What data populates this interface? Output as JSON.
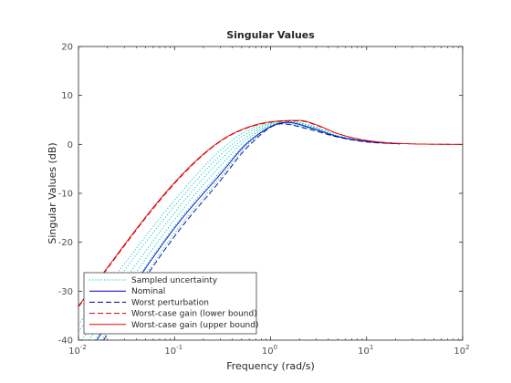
{
  "chart_data": {
    "type": "line",
    "title": "Singular Values",
    "xlabel": "Frequency (rad/s)",
    "ylabel": "Singular Values (dB)",
    "xscale": "log",
    "xlim": [
      0.01,
      100
    ],
    "ylim": [
      -40,
      20
    ],
    "xticks": [
      {
        "value": 0.01,
        "base": "10",
        "exp": "-2"
      },
      {
        "value": 0.1,
        "base": "10",
        "exp": "-1"
      },
      {
        "value": 1,
        "base": "10",
        "exp": "0"
      },
      {
        "value": 10,
        "base": "10",
        "exp": "1"
      },
      {
        "value": 100,
        "base": "10",
        "exp": "2"
      }
    ],
    "yticks": [
      "-40",
      "-30",
      "-20",
      "-10",
      "0",
      "10",
      "20"
    ],
    "grid": false,
    "legend_position": "bottom-left",
    "series": [
      {
        "name": "Sampled uncertainty",
        "color": "#00bfbf",
        "dash": "dotted",
        "curves": [
          [
            [
              0.0174,
              -40
            ],
            [
              0.1,
              -18.2
            ],
            [
              0.3,
              -6.8
            ],
            [
              0.6,
              0.2
            ],
            [
              1.3,
              4.3
            ],
            [
              2.5,
              3.3
            ],
            [
              5,
              1.6
            ],
            [
              10,
              0.6
            ],
            [
              22,
              0.1
            ]
          ],
          [
            [
              0.0149,
              -40
            ],
            [
              0.1,
              -16.7
            ],
            [
              0.3,
              -5.6
            ],
            [
              0.6,
              0.8
            ],
            [
              1.4,
              4.4
            ],
            [
              2.5,
              3.4
            ],
            [
              5,
              1.6
            ],
            [
              10,
              0.6
            ],
            [
              22,
              0.1
            ]
          ],
          [
            [
              0.0128,
              -40
            ],
            [
              0.1,
              -15.4
            ],
            [
              0.3,
              -4.4
            ],
            [
              0.6,
              1.4
            ],
            [
              1.5,
              4.5
            ],
            [
              2.6,
              3.5
            ],
            [
              5,
              1.7
            ],
            [
              10,
              0.6
            ],
            [
              22,
              0.1
            ]
          ],
          [
            [
              0.0108,
              -40
            ],
            [
              0.1,
              -14.0
            ],
            [
              0.3,
              -3.2
            ],
            [
              0.6,
              1.9
            ],
            [
              1.5,
              4.5
            ],
            [
              2.6,
              3.6
            ],
            [
              5,
              1.7
            ],
            [
              10,
              0.6
            ],
            [
              22,
              0.1
            ]
          ],
          [
            [
              0.01,
              -38.2
            ],
            [
              0.1,
              -12.6
            ],
            [
              0.3,
              -2.2
            ],
            [
              0.6,
              2.5
            ],
            [
              1.6,
              4.6
            ],
            [
              2.7,
              3.7
            ],
            [
              5,
              1.8
            ],
            [
              10,
              0.6
            ],
            [
              22,
              0.1
            ]
          ],
          [
            [
              0.01,
              -36.8
            ],
            [
              0.1,
              -11.4
            ],
            [
              0.3,
              -1.2
            ],
            [
              0.6,
              3.0
            ],
            [
              1.7,
              4.6
            ],
            [
              2.7,
              3.8
            ],
            [
              5,
              1.8
            ],
            [
              10,
              0.6
            ],
            [
              22,
              0.1
            ]
          ]
        ]
      },
      {
        "name": "Nominal",
        "color": "#0000cd",
        "dash": "solid",
        "curves": [
          [
            [
              0.0155,
              -40
            ],
            [
              0.1,
              -17.1
            ],
            [
              0.3,
              -6.1
            ],
            [
              0.6,
              0.6
            ],
            [
              1.5,
              4.5
            ],
            [
              2.6,
              3.4
            ],
            [
              5,
              1.6
            ],
            [
              10,
              0.6
            ],
            [
              22,
              0.1
            ]
          ]
        ]
      },
      {
        "name": "Worst perturbation",
        "color": "#00008b",
        "dash": "dashed",
        "curves": [
          [
            [
              0.0182,
              -40
            ],
            [
              0.1,
              -18.8
            ],
            [
              0.3,
              -7.4
            ],
            [
              0.6,
              -0.2
            ],
            [
              1.3,
              4.2
            ],
            [
              2.4,
              3.2
            ],
            [
              5,
              1.5
            ],
            [
              10,
              0.5
            ],
            [
              22,
              0.1
            ]
          ]
        ]
      },
      {
        "name": "Worst-case gain (lower bound)",
        "color": "#cc0000",
        "dash": "dashed",
        "curves": [
          [
            [
              0.01,
              -33.2
            ],
            [
              0.1,
              -8.0
            ],
            [
              0.3,
              0.6
            ],
            [
              0.7,
              3.9
            ],
            [
              2.0,
              4.8
            ],
            [
              3,
              3.9
            ],
            [
              5,
              2.2
            ],
            [
              10,
              0.8
            ],
            [
              30,
              0.1
            ],
            [
              100,
              0
            ]
          ]
        ]
      },
      {
        "name": "Worst-case gain (upper bound)",
        "color": "#e00000",
        "dash": "solid",
        "curves": [
          [
            [
              0.01,
              -33.0
            ],
            [
              0.1,
              -7.8
            ],
            [
              0.3,
              0.7
            ],
            [
              0.7,
              4.0
            ],
            [
              2.0,
              4.9
            ],
            [
              3,
              4.0
            ],
            [
              5,
              2.2
            ],
            [
              10,
              0.8
            ],
            [
              30,
              0.1
            ],
            [
              100,
              0
            ]
          ]
        ]
      }
    ]
  }
}
